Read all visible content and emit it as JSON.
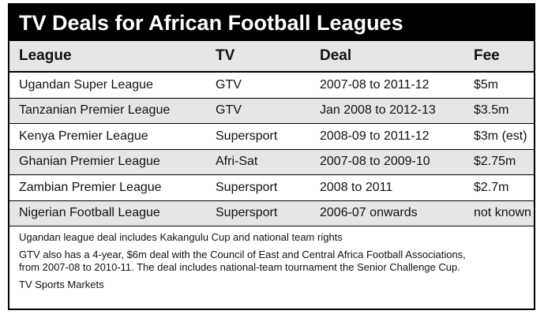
{
  "title": "TV Deals for African Football Leagues",
  "table": {
    "headers": [
      "League",
      "TV",
      "Deal",
      "Fee"
    ],
    "rows": [
      {
        "league": "Ugandan Super League",
        "tv": "GTV",
        "deal": "2007-08 to 2011-12",
        "fee": "$5m"
      },
      {
        "league": "Tanzanian Premier League",
        "tv": "GTV",
        "deal": "Jan 2008 to 2012-13",
        "fee": "$3.5m"
      },
      {
        "league": "Kenya Premier League",
        "tv": "Supersport",
        "deal": "2008-09 to 2011-12",
        "fee": "$3m (est)"
      },
      {
        "league": "Ghanian Premier League",
        "tv": "Afri-Sat",
        "deal": "2007-08 to 2009-10",
        "fee": "$2.75m"
      },
      {
        "league": "Zambian Premier League",
        "tv": "Supersport",
        "deal": "2008 to 2011",
        "fee": "$2.7m"
      },
      {
        "league": "Nigerian Football League",
        "tv": "Supersport",
        "deal": "2006-07 onwards",
        "fee": "not known"
      }
    ]
  },
  "notes": {
    "note1": "Ugandan league deal includes Kakangulu Cup and national team rights",
    "note2_line1": "GTV also has a 4-year, $6m deal with the Council of East and Central Africa Football Associations,",
    "note2_line2": "from 2007-08 to 2010-11.  The deal includes national-team tournament the Senior Challenge Cup.",
    "source": "TV Sports Markets"
  },
  "colors": {
    "title_bg": "#000000",
    "title_text": "#ffffff",
    "shaded_row": "#e6e6e6"
  }
}
